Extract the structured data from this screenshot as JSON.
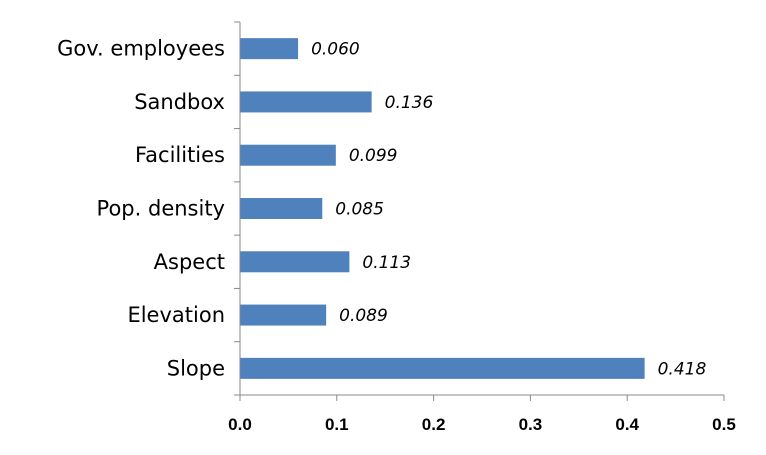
{
  "chart_data": {
    "type": "bar",
    "orientation": "horizontal",
    "categories": [
      "Slope",
      "Elevation",
      "Aspect",
      "Pop. density",
      "Facilities",
      "Sandbox",
      "Gov. employees"
    ],
    "values": [
      0.418,
      0.089,
      0.113,
      0.085,
      0.099,
      0.136,
      0.06
    ],
    "data_labels": [
      "0.418",
      "0.089",
      "0.113",
      "0.085",
      "0.099",
      "0.136",
      "0.060"
    ],
    "title": "",
    "xlabel": "",
    "ylabel": "",
    "xlim": [
      0.0,
      0.5
    ],
    "x_ticks": [
      0.0,
      0.1,
      0.2,
      0.3,
      0.4,
      0.5
    ],
    "x_tick_labels": [
      "0.0",
      "0.1",
      "0.2",
      "0.3",
      "0.4",
      "0.5"
    ],
    "grid": false,
    "legend": "none",
    "bar_color": "#4F81BD",
    "axis_color": "#888888"
  }
}
